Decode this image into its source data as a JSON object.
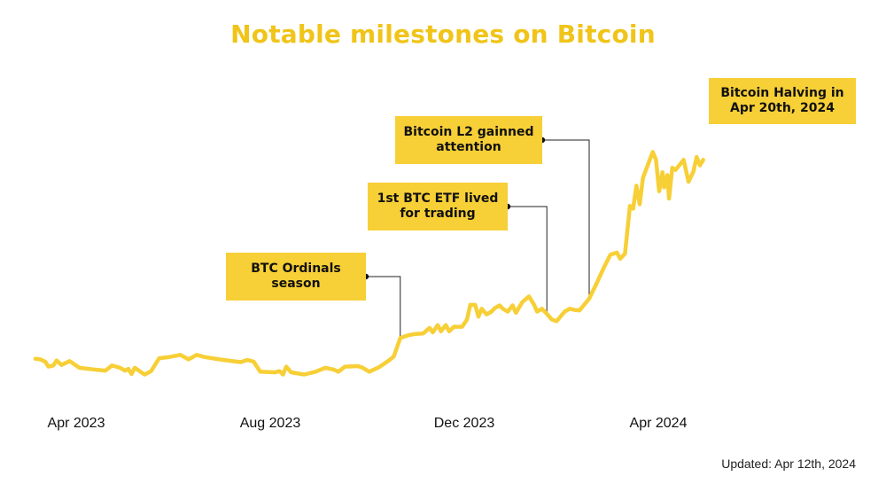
{
  "chart_data": {
    "type": "line",
    "title": "Notable milestones on Bitcoin",
    "xlabel": "",
    "ylabel": "",
    "grid": false,
    "line_color": "#f7cf36",
    "x_ticks": [
      "Apr 2023",
      "Aug 2023",
      "Dec 2023",
      "Apr 2024"
    ],
    "x_range": [
      "2023-03-01",
      "2024-04-12"
    ],
    "y_range": [
      24000,
      74000
    ],
    "series": [
      {
        "points": [
          [
            "2023-03-01",
            28300
          ],
          [
            "2023-03-04",
            28200
          ],
          [
            "2023-03-07",
            27800
          ],
          [
            "2023-03-09",
            26900
          ],
          [
            "2023-03-12",
            27100
          ],
          [
            "2023-03-14",
            28000
          ],
          [
            "2023-03-17",
            27200
          ],
          [
            "2023-03-22",
            27900
          ],
          [
            "2023-03-28",
            26700
          ],
          [
            "2023-04-06",
            26400
          ],
          [
            "2023-04-13",
            26200
          ],
          [
            "2023-04-17",
            27100
          ],
          [
            "2023-04-22",
            26700
          ],
          [
            "2023-04-25",
            26200
          ],
          [
            "2023-04-27",
            26500
          ],
          [
            "2023-04-29",
            25600
          ],
          [
            "2023-05-01",
            26700
          ],
          [
            "2023-05-04",
            26100
          ],
          [
            "2023-05-07",
            25500
          ],
          [
            "2023-05-11",
            26100
          ],
          [
            "2023-05-16",
            28400
          ],
          [
            "2023-05-22",
            28600
          ],
          [
            "2023-05-29",
            29000
          ],
          [
            "2023-06-03",
            28200
          ],
          [
            "2023-06-08",
            29000
          ],
          [
            "2023-06-13",
            28600
          ],
          [
            "2023-06-22",
            28200
          ],
          [
            "2023-07-05",
            27700
          ],
          [
            "2023-07-09",
            28100
          ],
          [
            "2023-07-13",
            27800
          ],
          [
            "2023-07-17",
            26000
          ],
          [
            "2023-07-26",
            25900
          ],
          [
            "2023-07-29",
            26100
          ],
          [
            "2023-07-31",
            25500
          ],
          [
            "2023-08-02",
            26900
          ],
          [
            "2023-08-05",
            25900
          ],
          [
            "2023-08-13",
            25500
          ],
          [
            "2023-08-20",
            26000
          ],
          [
            "2023-08-26",
            26700
          ],
          [
            "2023-08-31",
            26400
          ],
          [
            "2023-09-03",
            26000
          ],
          [
            "2023-09-07",
            26900
          ],
          [
            "2023-09-15",
            27000
          ],
          [
            "2023-09-18",
            26700
          ],
          [
            "2023-09-22",
            26000
          ],
          [
            "2023-09-28",
            26800
          ],
          [
            "2023-10-04",
            28000
          ],
          [
            "2023-10-07",
            28700
          ],
          [
            "2023-10-11",
            32000
          ],
          [
            "2023-10-16",
            32500
          ],
          [
            "2023-10-20",
            32700
          ],
          [
            "2023-10-25",
            32800
          ],
          [
            "2023-10-29",
            33800
          ],
          [
            "2023-10-31",
            33000
          ],
          [
            "2023-11-03",
            34300
          ],
          [
            "2023-11-05",
            33200
          ],
          [
            "2023-11-08",
            34300
          ],
          [
            "2023-11-10",
            33200
          ],
          [
            "2023-11-13",
            34000
          ],
          [
            "2023-11-18",
            34000
          ],
          [
            "2023-11-21",
            35300
          ],
          [
            "2023-11-23",
            37900
          ],
          [
            "2023-11-26",
            37900
          ],
          [
            "2023-11-28",
            35800
          ],
          [
            "2023-11-30",
            37200
          ],
          [
            "2023-12-03",
            36200
          ],
          [
            "2023-12-06",
            36700
          ],
          [
            "2023-12-08",
            37300
          ],
          [
            "2023-12-11",
            37800
          ],
          [
            "2023-12-13",
            37200
          ],
          [
            "2023-12-16",
            36700
          ],
          [
            "2023-12-19",
            37800
          ],
          [
            "2023-12-21",
            36500
          ],
          [
            "2023-12-25",
            38400
          ],
          [
            "2023-12-29",
            39400
          ],
          [
            "2024-01-01",
            38000
          ],
          [
            "2024-01-03",
            36700
          ],
          [
            "2024-01-06",
            37200
          ],
          [
            "2024-01-09",
            36300
          ],
          [
            "2024-01-12",
            35300
          ],
          [
            "2024-01-15",
            35000
          ],
          [
            "2024-01-20",
            36700
          ],
          [
            "2024-01-23",
            37200
          ],
          [
            "2024-01-26",
            37000
          ],
          [
            "2024-01-29",
            36900
          ],
          [
            "2024-02-04",
            39000
          ],
          [
            "2024-02-09",
            42000
          ],
          [
            "2024-02-13",
            44500
          ],
          [
            "2024-02-17",
            46800
          ],
          [
            "2024-02-21",
            47200
          ],
          [
            "2024-02-23",
            46100
          ],
          [
            "2024-02-26",
            47000
          ],
          [
            "2024-02-29",
            55500
          ],
          [
            "2024-03-02",
            55000
          ],
          [
            "2024-03-04",
            59100
          ],
          [
            "2024-03-06",
            55800
          ],
          [
            "2024-03-08",
            60500
          ],
          [
            "2024-03-11",
            62800
          ],
          [
            "2024-03-14",
            65100
          ],
          [
            "2024-03-16",
            63700
          ],
          [
            "2024-03-18",
            58100
          ],
          [
            "2024-03-20",
            61500
          ],
          [
            "2024-03-21",
            58800
          ],
          [
            "2024-03-23",
            61000
          ],
          [
            "2024-03-24",
            56800
          ],
          [
            "2024-03-26",
            62300
          ],
          [
            "2024-03-28",
            61900
          ],
          [
            "2024-04-02",
            63700
          ],
          [
            "2024-04-05",
            59800
          ],
          [
            "2024-04-08",
            61600
          ],
          [
            "2024-04-10",
            64200
          ],
          [
            "2024-04-12",
            62700
          ],
          [
            "2024-04-14",
            63700
          ]
        ]
      }
    ],
    "annotations": [
      {
        "name": "ordinals",
        "label": "BTC Ordinals\nseason",
        "date": "2023-10-11"
      },
      {
        "name": "etf",
        "label": "1st BTC ETF lived\nfor trading",
        "date": "2024-01-09"
      },
      {
        "name": "l2",
        "label": "Bitcoin L2 gainned\nattention",
        "date": "2024-02-04"
      },
      {
        "name": "halving",
        "label": "Bitcoin Halving in\nApr 20th, 2024",
        "date": "2024-04-20"
      }
    ],
    "footer": "Updated: Apr 12th, 2024"
  }
}
